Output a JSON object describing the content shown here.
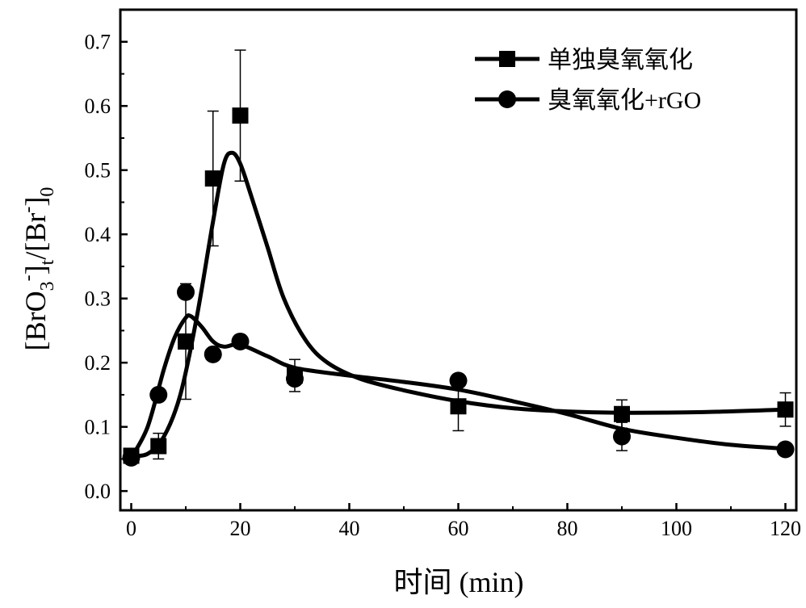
{
  "chart_data": {
    "type": "scatter",
    "xlabel": "时间 (min)",
    "ylabel": {
      "parts": [
        "[BrO",
        "3",
        "-",
        "]",
        "t",
        "/[Br",
        "-",
        "]",
        "0"
      ]
    },
    "xlim": [
      -2,
      122
    ],
    "ylim": [
      -0.03,
      0.75
    ],
    "x_ticks": [
      "0",
      "20",
      "40",
      "60",
      "80",
      "100",
      "120"
    ],
    "y_ticks": [
      "0.0",
      "0.1",
      "0.2",
      "0.3",
      "0.4",
      "0.5",
      "0.6",
      "0.7"
    ],
    "legend_position": "top-right",
    "series": [
      {
        "name": "单独臭氧氧化",
        "marker": "square",
        "color": "#000000",
        "points": [
          {
            "x": 0,
            "y": 0.055,
            "err": 0.005
          },
          {
            "x": 5,
            "y": 0.07,
            "err": 0.02
          },
          {
            "x": 10,
            "y": 0.233,
            "err": 0.09
          },
          {
            "x": 15,
            "y": 0.487,
            "err": 0.105
          },
          {
            "x": 20,
            "y": 0.585,
            "err": 0.102
          },
          {
            "x": 30,
            "y": 0.18,
            "err": 0.025
          },
          {
            "x": 60,
            "y": 0.132,
            "err": 0.038
          },
          {
            "x": 90,
            "y": 0.12,
            "err": 0.022
          },
          {
            "x": 120,
            "y": 0.127,
            "err": 0.026
          }
        ],
        "fit": [
          [
            0,
            0.055
          ],
          [
            3,
            0.058
          ],
          [
            6,
            0.085
          ],
          [
            9,
            0.15
          ],
          [
            12,
            0.27
          ],
          [
            15,
            0.42
          ],
          [
            17,
            0.51
          ],
          [
            18.5,
            0.527
          ],
          [
            20,
            0.51
          ],
          [
            22,
            0.46
          ],
          [
            25,
            0.38
          ],
          [
            28,
            0.3
          ],
          [
            32,
            0.235
          ],
          [
            36,
            0.2
          ],
          [
            42,
            0.175
          ],
          [
            50,
            0.157
          ],
          [
            60,
            0.14
          ],
          [
            70,
            0.129
          ],
          [
            80,
            0.124
          ],
          [
            90,
            0.122
          ],
          [
            105,
            0.123
          ],
          [
            120,
            0.127
          ]
        ]
      },
      {
        "name": "臭氧氧化+rGO",
        "marker": "circle",
        "color": "#000000",
        "points": [
          {
            "x": 0,
            "y": 0.052
          },
          {
            "x": 5,
            "y": 0.15
          },
          {
            "x": 10,
            "y": 0.31
          },
          {
            "x": 15,
            "y": 0.213
          },
          {
            "x": 20,
            "y": 0.233
          },
          {
            "x": 30,
            "y": 0.175
          },
          {
            "x": 60,
            "y": 0.172
          },
          {
            "x": 90,
            "y": 0.085,
            "err": 0.022
          },
          {
            "x": 120,
            "y": 0.065
          }
        ],
        "fit": [
          [
            0,
            0.052
          ],
          [
            3,
            0.1
          ],
          [
            6,
            0.19
          ],
          [
            8,
            0.24
          ],
          [
            10,
            0.27
          ],
          [
            11,
            0.272
          ],
          [
            13,
            0.255
          ],
          [
            15,
            0.233
          ],
          [
            17,
            0.225
          ],
          [
            20,
            0.228
          ],
          [
            25,
            0.21
          ],
          [
            30,
            0.192
          ],
          [
            40,
            0.18
          ],
          [
            50,
            0.17
          ],
          [
            60,
            0.158
          ],
          [
            70,
            0.14
          ],
          [
            80,
            0.12
          ],
          [
            90,
            0.097
          ],
          [
            100,
            0.083
          ],
          [
            110,
            0.072
          ],
          [
            120,
            0.066
          ]
        ]
      }
    ]
  }
}
